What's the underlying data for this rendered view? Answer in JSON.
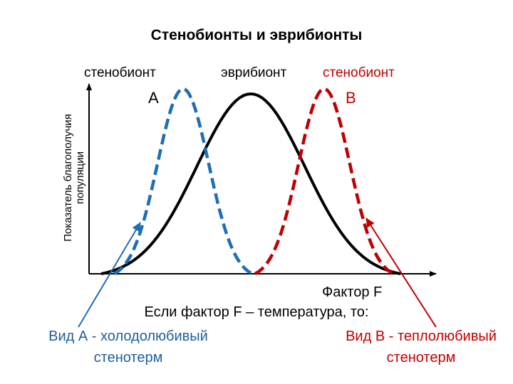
{
  "title": "Стенобионты и эврибионты",
  "curves": {
    "stenobiont_a": {
      "label": "стенобионт",
      "letter": "А",
      "color": "#1f6eb4"
    },
    "eurybiont": {
      "label": "эврибионт",
      "color": "#000000"
    },
    "stenobiont_b": {
      "label": "стенобионт",
      "letter": "В",
      "color": "#c00000"
    }
  },
  "axes": {
    "y_label_line1": "Показатель благополучия",
    "y_label_line2": "популяции",
    "x_label": "Фактор F"
  },
  "condition_text": "Если фактор F – температура, то:",
  "species_a": {
    "line1": "Вид А - холодолюбивый",
    "line2": "стенотерм",
    "color": "#1f5f9b"
  },
  "species_b": {
    "line1": "Вид В - теплолюбивый",
    "line2": "стенотерм",
    "color": "#c00000"
  }
}
